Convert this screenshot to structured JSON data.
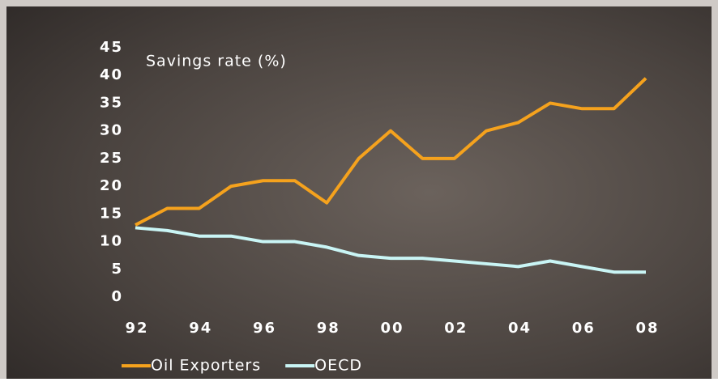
{
  "chart_data": {
    "type": "line",
    "title": "Savings rate (%)",
    "categories": [
      "92",
      null,
      "94",
      null,
      "96",
      null,
      "98",
      null,
      "00",
      null,
      "02",
      null,
      "04",
      null,
      "06",
      null,
      "08"
    ],
    "series": [
      {
        "name": "Oil Exporters",
        "color": "#f5a21d",
        "values": [
          13,
          16,
          16,
          20,
          21,
          21,
          17,
          25,
          30,
          25,
          25,
          30,
          31.5,
          35,
          34,
          34,
          39.5
        ]
      },
      {
        "name": "OECD",
        "color": "#c9f5f5",
        "values": [
          12.5,
          12,
          11,
          11,
          10,
          10,
          9,
          7.5,
          7,
          7,
          6.5,
          6,
          5.5,
          6.5,
          5.5,
          4.5,
          4.5
        ]
      }
    ],
    "ylim": [
      0,
      45
    ],
    "yticks": [
      0,
      5,
      10,
      15,
      20,
      25,
      30,
      35,
      40,
      45
    ],
    "legend": "bottom"
  }
}
